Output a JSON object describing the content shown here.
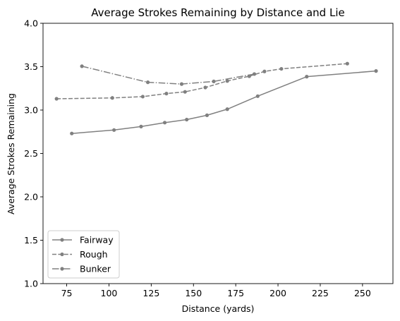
{
  "chart_data": {
    "type": "line",
    "title": "Average Strokes Remaining by Distance and Lie",
    "xlabel": "Distance (yards)",
    "ylabel": "Average Strokes Remaining",
    "xlim": [
      61,
      268
    ],
    "ylim": [
      1.0,
      4.0
    ],
    "xticks": [
      "75",
      "100",
      "125",
      "150",
      "175",
      "200",
      "225",
      "250"
    ],
    "yticks": [
      "1.0",
      "1.5",
      "2.0",
      "2.5",
      "3.0",
      "3.5",
      "4.0"
    ],
    "grid": false,
    "legend_position": "lower-left",
    "line_color": "#808080",
    "series": [
      {
        "name": "Fairway",
        "style": "solid",
        "x": [
          78,
          103,
          119,
          133,
          146,
          158,
          170,
          188,
          217,
          258
        ],
        "y": [
          2.73,
          2.77,
          2.81,
          2.855,
          2.89,
          2.94,
          3.01,
          3.16,
          3.385,
          3.45
        ]
      },
      {
        "name": "Rough",
        "style": "dashed",
        "x": [
          69,
          102,
          120,
          134,
          145,
          157,
          170,
          183,
          192,
          202,
          241
        ],
        "y": [
          3.13,
          3.14,
          3.155,
          3.19,
          3.21,
          3.26,
          3.335,
          3.39,
          3.445,
          3.475,
          3.535
        ]
      },
      {
        "name": "Bunker",
        "style": "dashdot",
        "x": [
          84,
          123,
          143,
          162,
          186
        ],
        "y": [
          3.505,
          3.32,
          3.3,
          3.33,
          3.415
        ]
      }
    ]
  }
}
